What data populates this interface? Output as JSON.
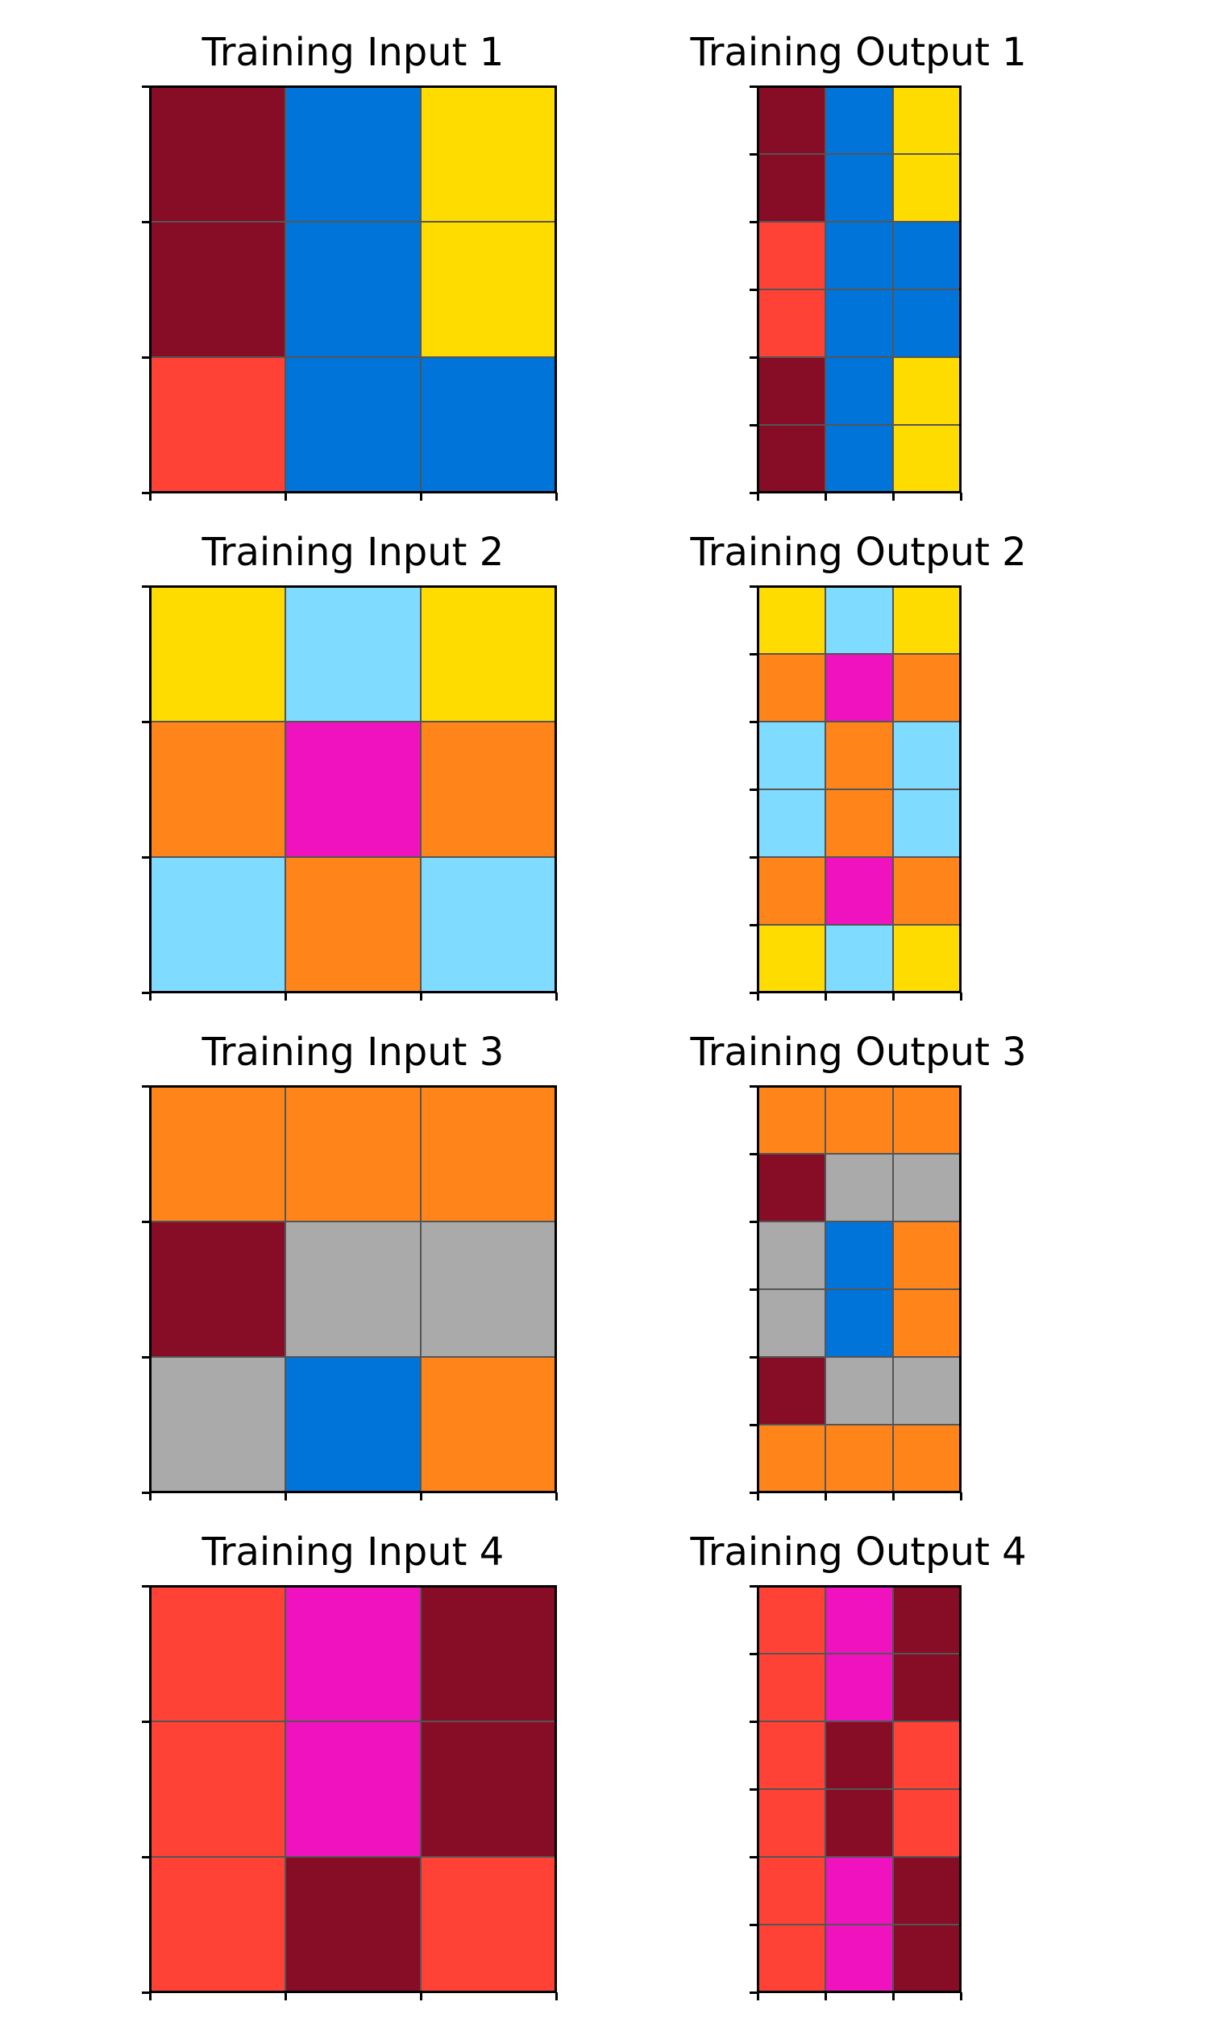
{
  "palette": {
    "0": "#000000",
    "1": "#0074D9",
    "2": "#FF4136",
    "3": "#2ECC40",
    "4": "#FFDC00",
    "5": "#AAAAAA",
    "6": "#F012BE",
    "7": "#FF851B",
    "8": "#7FDBFF",
    "9": "#870C25"
  },
  "pairs": [
    {
      "input": {
        "title": "Training Input 1",
        "grid": [
          [
            9,
            1,
            4
          ],
          [
            9,
            1,
            4
          ],
          [
            2,
            1,
            1
          ]
        ]
      },
      "output": {
        "title": "Training Output 1",
        "grid": [
          [
            9,
            1,
            4
          ],
          [
            9,
            1,
            4
          ],
          [
            2,
            1,
            1
          ],
          [
            2,
            1,
            1
          ],
          [
            9,
            1,
            4
          ],
          [
            9,
            1,
            4
          ]
        ]
      }
    },
    {
      "input": {
        "title": "Training Input 2",
        "grid": [
          [
            4,
            8,
            4
          ],
          [
            7,
            6,
            7
          ],
          [
            8,
            7,
            8
          ]
        ]
      },
      "output": {
        "title": "Training Output 2",
        "grid": [
          [
            4,
            8,
            4
          ],
          [
            7,
            6,
            7
          ],
          [
            8,
            7,
            8
          ],
          [
            8,
            7,
            8
          ],
          [
            7,
            6,
            7
          ],
          [
            4,
            8,
            4
          ]
        ]
      }
    },
    {
      "input": {
        "title": "Training Input 3",
        "grid": [
          [
            7,
            7,
            7
          ],
          [
            9,
            5,
            5
          ],
          [
            5,
            1,
            7
          ]
        ]
      },
      "output": {
        "title": "Training Output 3",
        "grid": [
          [
            7,
            7,
            7
          ],
          [
            9,
            5,
            5
          ],
          [
            5,
            1,
            7
          ],
          [
            5,
            1,
            7
          ],
          [
            9,
            5,
            5
          ],
          [
            7,
            7,
            7
          ]
        ]
      }
    },
    {
      "input": {
        "title": "Training Input 4",
        "grid": [
          [
            2,
            6,
            9
          ],
          [
            2,
            6,
            9
          ],
          [
            2,
            9,
            2
          ]
        ]
      },
      "output": {
        "title": "Training Output 4",
        "grid": [
          [
            2,
            6,
            9
          ],
          [
            2,
            6,
            9
          ],
          [
            2,
            9,
            2
          ],
          [
            2,
            9,
            2
          ],
          [
            2,
            6,
            9
          ],
          [
            2,
            6,
            9
          ]
        ]
      }
    }
  ]
}
